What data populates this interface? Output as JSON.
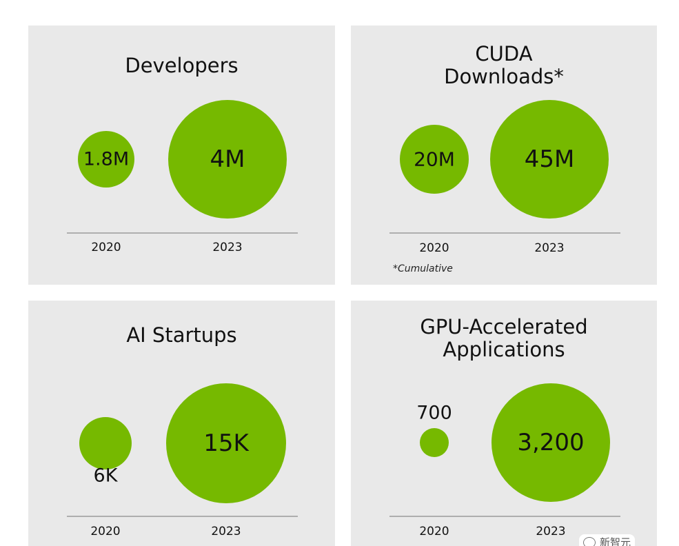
{
  "colors": {
    "bubble": "#76b900",
    "panel_bg": "#e9e9e9",
    "baseline": "#8a8a8a",
    "text": "#111111"
  },
  "chart_data": [
    {
      "type": "bubble",
      "title": "Developers",
      "categories": [
        "2020",
        "2023"
      ],
      "values": [
        1800000,
        4000000
      ],
      "labels": [
        "1.8M",
        "4M"
      ]
    },
    {
      "type": "bubble",
      "title": "CUDA Downloads*",
      "title_lines": [
        "CUDA",
        "Downloads*"
      ],
      "categories": [
        "2020",
        "2023"
      ],
      "values": [
        20000000,
        45000000
      ],
      "labels": [
        "20M",
        "45M"
      ],
      "note": "*Cumulative"
    },
    {
      "type": "bubble",
      "title": "AI Startups",
      "categories": [
        "2020",
        "2023"
      ],
      "values": [
        6000,
        15000
      ],
      "labels": [
        "6K",
        "15K"
      ]
    },
    {
      "type": "bubble",
      "title": "GPU-Accelerated Applications",
      "title_lines": [
        "GPU-Accelerated",
        "Applications"
      ],
      "categories": [
        "2020",
        "2023"
      ],
      "values": [
        700,
        3200
      ],
      "labels": [
        "700",
        "3,200"
      ]
    }
  ],
  "watermark": {
    "text": "新智元",
    "icon": "wechat-icon"
  }
}
